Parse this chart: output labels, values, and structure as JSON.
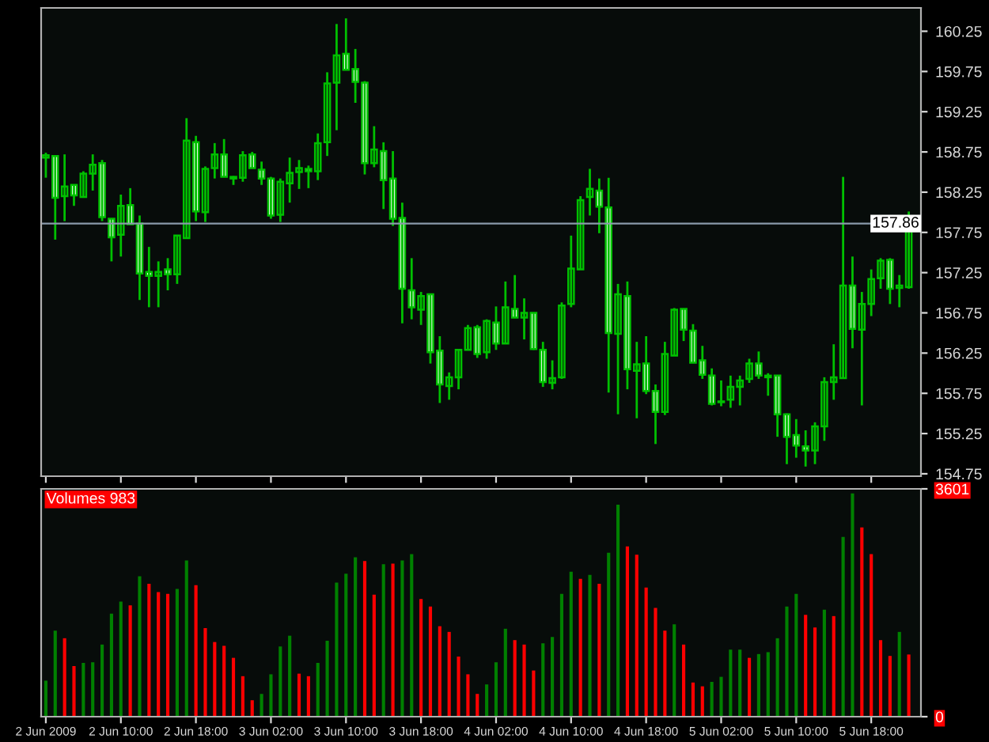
{
  "chart_data": [
    {
      "type": "candlestick",
      "color": "#00c000",
      "ohlc": [
        [
          158.68,
          158.74,
          158.43,
          158.71
        ],
        [
          158.7,
          158.7,
          157.66,
          158.18
        ],
        [
          158.2,
          158.72,
          157.89,
          158.32
        ],
        [
          158.34,
          158.34,
          158.08,
          158.21
        ],
        [
          158.19,
          158.51,
          158.18,
          158.48
        ],
        [
          158.48,
          158.72,
          158.27,
          158.59
        ],
        [
          158.61,
          158.65,
          157.89,
          157.94
        ],
        [
          157.92,
          157.92,
          157.39,
          157.69
        ],
        [
          157.72,
          158.22,
          157.45,
          158.08
        ],
        [
          158.09,
          158.3,
          157.85,
          157.85
        ],
        [
          157.86,
          157.96,
          156.91,
          157.24
        ],
        [
          157.26,
          157.57,
          156.82,
          157.21
        ],
        [
          157.21,
          157.39,
          156.82,
          157.26
        ],
        [
          157.29,
          157.43,
          157.03,
          157.23
        ],
        [
          157.23,
          157.71,
          157.11,
          157.71
        ],
        [
          157.68,
          159.17,
          157.68,
          158.89
        ],
        [
          158.87,
          158.95,
          157.89,
          158.01
        ],
        [
          158.0,
          158.57,
          157.88,
          158.54
        ],
        [
          158.55,
          158.86,
          158.42,
          158.72
        ],
        [
          158.72,
          158.91,
          158.44,
          158.44
        ],
        [
          158.44,
          158.45,
          158.34,
          158.42
        ],
        [
          158.43,
          158.76,
          158.38,
          158.71
        ],
        [
          158.72,
          158.75,
          158.55,
          158.55
        ],
        [
          158.53,
          158.63,
          158.34,
          158.42
        ],
        [
          158.42,
          158.44,
          157.92,
          157.96
        ],
        [
          157.97,
          158.42,
          157.88,
          158.38
        ],
        [
          158.36,
          158.68,
          158.12,
          158.49
        ],
        [
          158.5,
          158.65,
          158.29,
          158.55
        ],
        [
          158.54,
          158.58,
          158.3,
          158.51
        ],
        [
          158.51,
          158.98,
          158.4,
          158.86
        ],
        [
          158.87,
          159.74,
          158.7,
          159.6
        ],
        [
          159.61,
          160.34,
          159.02,
          159.95
        ],
        [
          159.97,
          160.41,
          159.77,
          159.77
        ],
        [
          159.78,
          160.03,
          159.36,
          159.62
        ],
        [
          159.61,
          159.63,
          158.47,
          158.61
        ],
        [
          158.61,
          159.07,
          158.56,
          158.78
        ],
        [
          158.76,
          158.87,
          158.04,
          158.4
        ],
        [
          158.42,
          158.76,
          157.83,
          157.92
        ],
        [
          157.93,
          158.12,
          156.62,
          157.05
        ],
        [
          157.03,
          157.43,
          156.67,
          156.82
        ],
        [
          156.79,
          157.01,
          156.6,
          156.96
        ],
        [
          156.98,
          156.98,
          156.12,
          156.26
        ],
        [
          156.28,
          156.46,
          155.63,
          155.86
        ],
        [
          155.84,
          156.01,
          155.67,
          155.95
        ],
        [
          155.95,
          156.29,
          155.8,
          156.29
        ],
        [
          156.29,
          156.6,
          156.29,
          156.56
        ],
        [
          156.57,
          156.6,
          156.19,
          156.24
        ],
        [
          156.26,
          156.67,
          156.18,
          156.65
        ],
        [
          156.63,
          156.83,
          156.29,
          156.37
        ],
        [
          156.37,
          157.14,
          156.37,
          156.82
        ],
        [
          156.8,
          157.22,
          156.69,
          156.69
        ],
        [
          156.69,
          156.93,
          156.42,
          156.75
        ],
        [
          156.75,
          156.75,
          156.29,
          156.3
        ],
        [
          156.29,
          156.39,
          155.83,
          155.89
        ],
        [
          155.88,
          156.16,
          155.8,
          155.94
        ],
        [
          155.95,
          156.88,
          155.93,
          156.84
        ],
        [
          156.86,
          157.71,
          156.82,
          157.3
        ],
        [
          157.29,
          158.2,
          157.29,
          158.15
        ],
        [
          158.19,
          158.54,
          157.96,
          158.29
        ],
        [
          158.27,
          158.42,
          157.74,
          158.07
        ],
        [
          158.06,
          158.43,
          155.76,
          156.5
        ],
        [
          156.49,
          157.11,
          155.49,
          156.98
        ],
        [
          156.96,
          157.14,
          155.8,
          156.05
        ],
        [
          156.03,
          156.39,
          155.44,
          156.11
        ],
        [
          156.12,
          156.46,
          155.74,
          155.78
        ],
        [
          155.78,
          155.86,
          155.12,
          155.52
        ],
        [
          155.52,
          156.39,
          155.48,
          156.24
        ],
        [
          156.22,
          156.81,
          156.22,
          156.79
        ],
        [
          156.8,
          156.8,
          156.4,
          156.54
        ],
        [
          156.53,
          156.61,
          156.13,
          156.13
        ],
        [
          156.16,
          156.34,
          155.93,
          155.98
        ],
        [
          155.97,
          156.06,
          155.6,
          155.62
        ],
        [
          155.65,
          155.91,
          155.59,
          155.64
        ],
        [
          155.67,
          155.97,
          155.57,
          155.83
        ],
        [
          155.83,
          155.97,
          155.6,
          155.91
        ],
        [
          155.93,
          156.18,
          155.88,
          156.12
        ],
        [
          156.12,
          156.27,
          155.93,
          155.97
        ],
        [
          155.97,
          156.0,
          155.72,
          155.95
        ],
        [
          155.97,
          155.97,
          155.21,
          155.49
        ],
        [
          155.49,
          155.5,
          154.87,
          155.21
        ],
        [
          155.23,
          155.43,
          154.95,
          155.1
        ],
        [
          155.09,
          155.29,
          154.84,
          155.04
        ],
        [
          155.04,
          155.39,
          154.87,
          155.34
        ],
        [
          155.34,
          155.95,
          155.16,
          155.89
        ],
        [
          155.89,
          156.36,
          155.67,
          155.95
        ],
        [
          155.94,
          158.44,
          155.94,
          157.09
        ],
        [
          157.09,
          157.45,
          156.31,
          156.55
        ],
        [
          156.54,
          157.01,
          155.6,
          156.86
        ],
        [
          156.86,
          157.29,
          156.71,
          157.17
        ],
        [
          157.18,
          157.43,
          157.05,
          157.4
        ],
        [
          157.41,
          157.43,
          156.86,
          157.05
        ],
        [
          157.06,
          157.22,
          156.82,
          157.09
        ],
        [
          157.07,
          158.01,
          157.05,
          157.86
        ]
      ],
      "ylim": [
        154.72,
        160.54
      ],
      "yticks": [
        154.75,
        155.25,
        155.75,
        156.25,
        156.75,
        157.25,
        157.75,
        158.25,
        158.75,
        159.25,
        159.75,
        160.25
      ],
      "ref_lines": [
        {
          "axis": "y",
          "value": 157.86,
          "label": "157.86",
          "color": "#8a9aaa"
        }
      ],
      "tick_labels": "y"
    },
    {
      "type": "bar",
      "title": "Volumes 983",
      "categories": [
        "2 Jun 2009",
        null,
        null,
        null,
        null,
        null,
        null,
        null,
        "2 Jun 10:00",
        null,
        null,
        null,
        null,
        null,
        null,
        null,
        "2 Jun 18:00",
        null,
        null,
        null,
        null,
        null,
        null,
        null,
        "3 Jun 02:00",
        null,
        null,
        null,
        null,
        null,
        null,
        null,
        "3 Jun 10:00",
        null,
        null,
        null,
        null,
        null,
        null,
        null,
        "3 Jun 18:00",
        null,
        null,
        null,
        null,
        null,
        null,
        null,
        "4 Jun 02:00",
        null,
        null,
        null,
        null,
        null,
        null,
        null,
        "4 Jun 10:00",
        null,
        null,
        null,
        null,
        null,
        null,
        null,
        "4 Jun 18:00",
        null,
        null,
        null,
        null,
        null,
        null,
        null,
        "5 Jun 02:00",
        null,
        null,
        null,
        null,
        null,
        null,
        null,
        "5 Jun 10:00",
        null,
        null,
        null,
        null,
        null,
        null,
        null,
        "5 Jun 18:00",
        null,
        null,
        null,
        null
      ],
      "values": [
        570,
        1360,
        1240,
        800,
        850,
        860,
        1140,
        1630,
        1820,
        1760,
        2220,
        2100,
        1970,
        1940,
        2020,
        2470,
        2080,
        1400,
        1180,
        1120,
        930,
        640,
        260,
        360,
        670,
        1110,
        1280,
        680,
        640,
        850,
        1200,
        2120,
        2260,
        2520,
        2460,
        1930,
        2410,
        2420,
        2470,
        2570,
        1860,
        1740,
        1430,
        1340,
        950,
        670,
        360,
        510,
        860,
        1390,
        1210,
        1140,
        730,
        1160,
        1260,
        1940,
        2290,
        2180,
        2240,
        2100,
        2590,
        3350,
        2690,
        2560,
        2040,
        1720,
        1360,
        1460,
        1140,
        540,
        480,
        550,
        630,
        1060,
        1060,
        930,
        990,
        1020,
        1240,
        1740,
        1940,
        1610,
        1410,
        1690,
        1590,
        2840,
        3530,
        2990,
        2570,
        1210,
        960,
        1340,
        983
      ],
      "colors": [
        "#008000",
        "#008000",
        "#ff0000",
        "#ff0000",
        "#008000",
        "#008000",
        "#008000",
        "#008000",
        "#008000",
        "#ff0000",
        "#008000",
        "#ff0000",
        "#ff0000",
        "#ff0000",
        "#008000",
        "#008000",
        "#ff0000",
        "#ff0000",
        "#ff0000",
        "#ff0000",
        "#ff0000",
        "#ff0000",
        "#ff0000",
        "#008000",
        "#008000",
        "#008000",
        "#008000",
        "#ff0000",
        "#ff0000",
        "#008000",
        "#008000",
        "#008000",
        "#008000",
        "#008000",
        "#ff0000",
        "#ff0000",
        "#008000",
        "#ff0000",
        "#008000",
        "#008000",
        "#ff0000",
        "#ff0000",
        "#ff0000",
        "#ff0000",
        "#ff0000",
        "#ff0000",
        "#ff0000",
        "#008000",
        "#008000",
        "#008000",
        "#ff0000",
        "#ff0000",
        "#ff0000",
        "#008000",
        "#008000",
        "#008000",
        "#008000",
        "#ff0000",
        "#008000",
        "#ff0000",
        "#008000",
        "#008000",
        "#ff0000",
        "#ff0000",
        "#ff0000",
        "#ff0000",
        "#ff0000",
        "#008000",
        "#ff0000",
        "#ff0000",
        "#ff0000",
        "#008000",
        "#008000",
        "#008000",
        "#008000",
        "#ff0000",
        "#008000",
        "#008000",
        "#008000",
        "#008000",
        "#008000",
        "#ff0000",
        "#ff0000",
        "#008000",
        "#ff0000",
        "#008000",
        "#008000",
        "#ff0000",
        "#ff0000",
        "#ff0000",
        "#ff0000",
        "#008000",
        "#ff0000"
      ],
      "ylim": [
        0,
        3601
      ],
      "yticks": [
        0,
        3601
      ]
    }
  ]
}
